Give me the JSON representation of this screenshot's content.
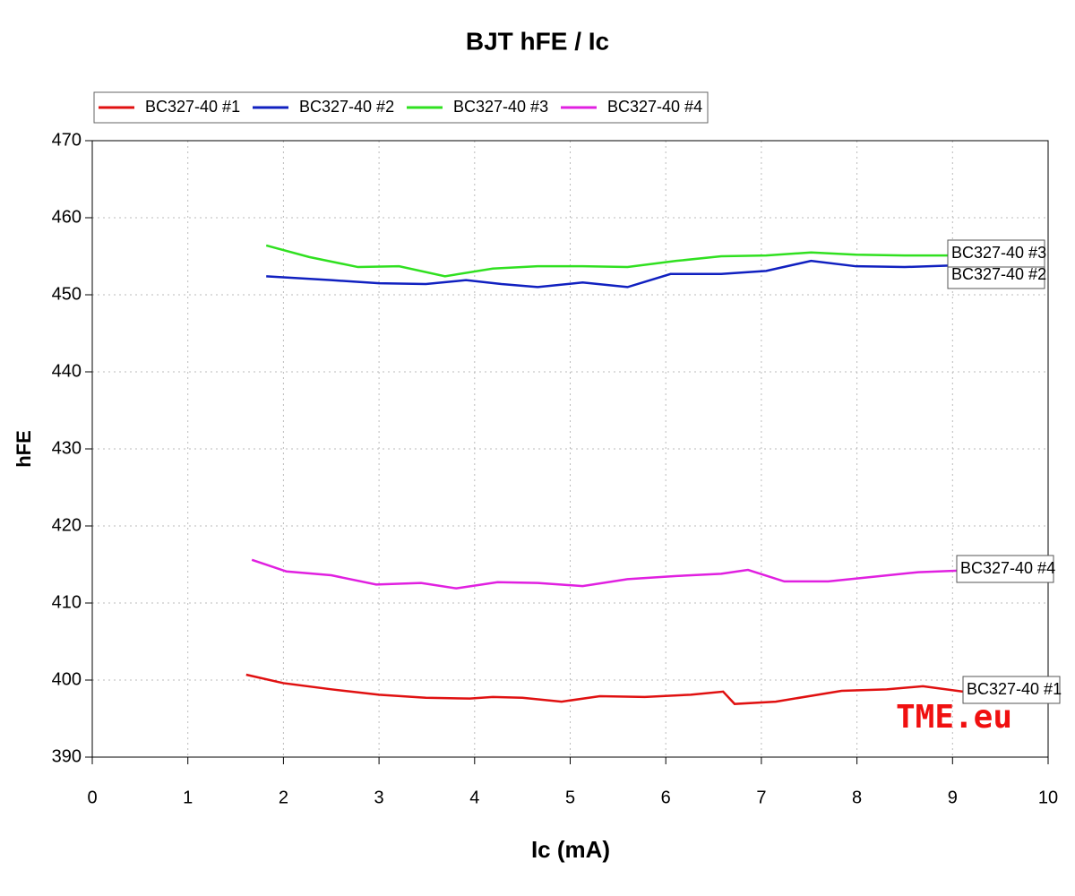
{
  "chart_data": {
    "type": "line",
    "title": "BJT hFE / Ic",
    "xlabel": "Ic (mA)",
    "ylabel": "hFE",
    "xlim": [
      0,
      10
    ],
    "xticks": [
      0,
      1,
      2,
      3,
      4,
      5,
      6,
      7,
      8,
      9,
      10
    ],
    "ylim": [
      390,
      470
    ],
    "yticks": [
      390,
      400,
      410,
      420,
      430,
      440,
      450,
      460,
      470
    ],
    "grid": true,
    "legend": "top-left",
    "watermark": "TME.eu",
    "series": [
      {
        "name": "BC327-40 #1",
        "color": "#e01010",
        "x": [
          1.61,
          2.0,
          2.5,
          3.0,
          3.49,
          3.95,
          4.19,
          4.5,
          4.91,
          5.31,
          5.78,
          6.26,
          6.6,
          6.72,
          7.15,
          7.84,
          8.31,
          8.69,
          9.11
        ],
        "values": [
          400.7,
          399.6,
          398.8,
          398.1,
          397.7,
          397.6,
          397.8,
          397.7,
          397.2,
          397.9,
          397.8,
          398.1,
          398.5,
          396.9,
          397.2,
          398.6,
          398.8,
          399.2,
          398.5
        ]
      },
      {
        "name": "BC327-40 #2",
        "color": "#1020c0",
        "x": [
          1.82,
          2.5,
          3.0,
          3.49,
          3.91,
          4.28,
          4.66,
          5.13,
          5.6,
          6.05,
          6.58,
          7.05,
          7.52,
          7.99,
          8.5,
          8.97
        ],
        "values": [
          452.4,
          451.9,
          451.5,
          451.4,
          451.9,
          451.4,
          451.0,
          451.6,
          451.0,
          452.7,
          452.7,
          453.1,
          454.4,
          453.7,
          453.6,
          453.8
        ]
      },
      {
        "name": "BC327-40 #3",
        "color": "#30e020",
        "x": [
          1.82,
          2.27,
          2.78,
          3.21,
          3.69,
          4.19,
          4.66,
          5.13,
          5.6,
          6.11,
          6.58,
          7.05,
          7.52,
          7.99,
          8.5,
          8.97
        ],
        "values": [
          456.4,
          454.9,
          453.6,
          453.7,
          452.4,
          453.4,
          453.7,
          453.7,
          453.6,
          454.4,
          455.0,
          455.1,
          455.5,
          455.2,
          455.1,
          455.1
        ]
      },
      {
        "name": "BC327-40 #4",
        "color": "#e020e0",
        "x": [
          1.67,
          2.03,
          2.5,
          2.97,
          3.44,
          3.81,
          4.24,
          4.66,
          5.13,
          5.6,
          6.11,
          6.58,
          6.86,
          7.24,
          7.7,
          8.17,
          8.64,
          9.06
        ],
        "values": [
          415.6,
          414.1,
          413.6,
          412.4,
          412.6,
          411.9,
          412.7,
          412.6,
          412.2,
          413.1,
          413.5,
          413.8,
          414.3,
          412.8,
          412.8,
          413.4,
          414.0,
          414.2
        ]
      }
    ]
  }
}
